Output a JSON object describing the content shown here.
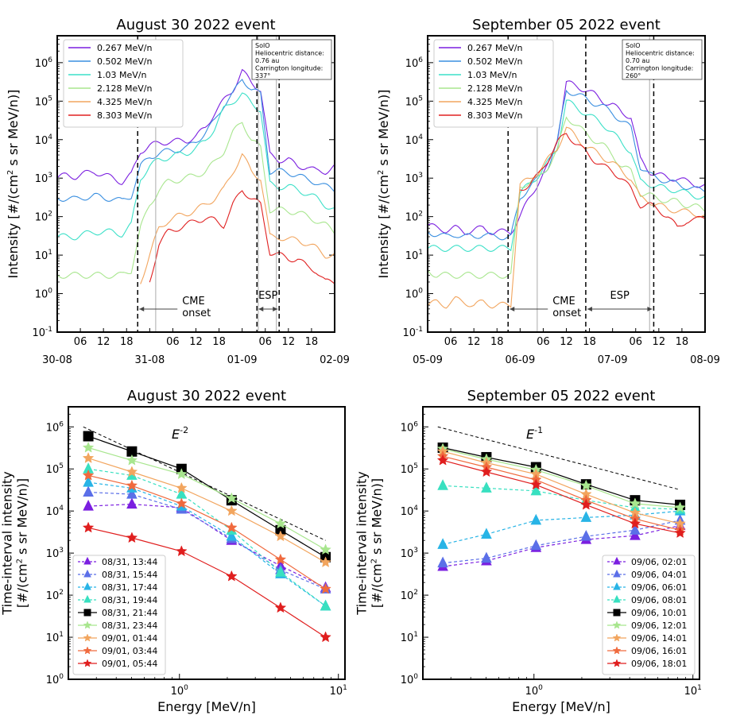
{
  "chart_data": [
    {
      "type": "line",
      "title": "August 30 2022 event",
      "ylabel": "Intensity [#/(cm² s sr MeV/n)]",
      "yscale": "log",
      "ylim": [
        0.1,
        5000000
      ],
      "date_labels": [
        "30-08",
        "31-08",
        "01-09",
        "02-09"
      ],
      "hour_labels": [
        "06",
        "12",
        "18",
        "06",
        "12",
        "18",
        "06",
        "12",
        "18"
      ],
      "legend_loc": "upper left",
      "info_box": [
        "SolO",
        "Heliocentric distance:",
        "0.76 au",
        "Carrington longitude:",
        "337°"
      ],
      "annotations": [
        "CME",
        "onset",
        "ESP"
      ],
      "series": [
        {
          "name": "0.267 MeV/n",
          "color": "#7b1fe0",
          "values": [
            1000,
            1200,
            1100,
            1300,
            1500,
            1200,
            1000,
            800,
            1200,
            5000,
            7000,
            8000,
            9000,
            9000,
            9500,
            12000,
            20000,
            50000,
            100000,
            200000,
            600000,
            300000,
            200000,
            4000,
            3000,
            3000,
            2000,
            2000,
            1500,
            1500,
            2000
          ]
        },
        {
          "name": "0.502 MeV/n",
          "color": "#3a8fe0",
          "values": [
            300,
            300,
            280,
            320,
            350,
            300,
            300,
            250,
            350,
            2000,
            3500,
            4500,
            5000,
            5500,
            6000,
            9000,
            15000,
            30000,
            80000,
            150000,
            400000,
            200000,
            150000,
            1500,
            1500,
            1400,
            1200,
            900,
            800,
            600,
            500
          ]
        },
        {
          "name": "1.03 MeV/n",
          "color": "#3ce0c8",
          "values": [
            30,
            30,
            30,
            35,
            40,
            40,
            40,
            35,
            60,
            1000,
            2000,
            3000,
            3500,
            4000,
            4500,
            6000,
            9000,
            20000,
            60000,
            100000,
            150000,
            90000,
            60000,
            700,
            600,
            600,
            500,
            400,
            300,
            200,
            150
          ]
        },
        {
          "name": "2.128 MeV/n",
          "color": "#a8e68e",
          "values": [
            3,
            3,
            3,
            3,
            3,
            3,
            3,
            3,
            4,
            50,
            200,
            500,
            800,
            900,
            1000,
            1200,
            1500,
            2500,
            5000,
            15000,
            30000,
            10000,
            6000,
            150,
            150,
            140,
            130,
            100,
            80,
            60,
            40
          ]
        },
        {
          "name": "4.325 MeV/n",
          "color": "#f2a55e",
          "values": [
            null,
            null,
            null,
            null,
            null,
            null,
            null,
            null,
            null,
            2,
            10,
            50,
            80,
            100,
            120,
            150,
            200,
            300,
            500,
            1500,
            4000,
            1500,
            1000,
            30,
            30,
            25,
            25,
            20,
            15,
            10,
            10
          ]
        },
        {
          "name": "8.303 MeV/n",
          "color": "#e02020",
          "values": [
            null,
            null,
            null,
            null,
            null,
            null,
            null,
            null,
            null,
            null,
            2,
            20,
            40,
            50,
            60,
            80,
            90,
            80,
            60,
            200,
            500,
            300,
            200,
            12,
            10,
            8,
            8,
            5,
            4,
            2,
            2
          ]
        }
      ],
      "vlines_dashed_frac": [
        0.29,
        0.72,
        0.8
      ],
      "vlines_gray_frac": [
        0.355,
        0.725,
        0.79
      ]
    },
    {
      "type": "line",
      "title": "September 05 2022 event",
      "ylabel": "Intensity [#/(cm² s sr MeV/n)]",
      "yscale": "log",
      "ylim": [
        0.1,
        5000000
      ],
      "date_labels": [
        "05-09",
        "06-09",
        "07-09",
        "08-09"
      ],
      "hour_labels": [
        "06",
        "12",
        "18",
        "06",
        "12",
        "18",
        "06",
        "12",
        "18"
      ],
      "legend_loc": "upper left",
      "info_box": [
        "SolO",
        "Heliocentric distance:",
        "0.70 au",
        "Carrington longitude:",
        "260°"
      ],
      "annotations": [
        "CME",
        "onset",
        "ESP"
      ],
      "series": [
        {
          "name": "0.267 MeV/n",
          "color": "#7b1fe0",
          "values": [
            60,
            50,
            45,
            50,
            40,
            45,
            50,
            40,
            40,
            40,
            100,
            300,
            800,
            2000,
            10000,
            300000,
            250000,
            200000,
            150000,
            100000,
            80000,
            50000,
            40000,
            3000,
            1500,
            1200,
            1000,
            1000,
            800,
            700,
            600
          ]
        },
        {
          "name": "0.502 MeV/n",
          "color": "#3a8fe0",
          "values": [
            40,
            35,
            30,
            35,
            30,
            30,
            35,
            30,
            30,
            30,
            300,
            600,
            1000,
            2000,
            8000,
            200000,
            150000,
            120000,
            90000,
            70000,
            50000,
            30000,
            20000,
            2000,
            1200,
            1000,
            800,
            700,
            600,
            500,
            500
          ]
        },
        {
          "name": "1.03 MeV/n",
          "color": "#3ce0c8",
          "values": [
            15,
            15,
            15,
            15,
            15,
            15,
            15,
            15,
            15,
            15,
            400,
            700,
            1200,
            2500,
            6000,
            100000,
            70000,
            50000,
            35000,
            25000,
            15000,
            8000,
            5000,
            800,
            700,
            600,
            500,
            500,
            400,
            350,
            300
          ]
        },
        {
          "name": "2.128 MeV/n",
          "color": "#a8e68e",
          "values": [
            4,
            3,
            3,
            3,
            3,
            3,
            3,
            3,
            3,
            3,
            600,
            800,
            1000,
            2000,
            5000,
            40000,
            25000,
            15000,
            10000,
            7000,
            4000,
            2000,
            1500,
            400,
            350,
            300,
            250,
            250,
            200,
            180,
            150
          ]
        },
        {
          "name": "4.325 MeV/n",
          "color": "#f2a55e",
          "values": [
            0.5,
            0.6,
            0.5,
            0.7,
            0.6,
            0.5,
            0.6,
            0.5,
            0.5,
            0.5,
            700,
            900,
            1500,
            3000,
            6000,
            20000,
            12000,
            7000,
            5000,
            3500,
            2500,
            1500,
            1000,
            300,
            250,
            200,
            150,
            150,
            130,
            120,
            100
          ]
        },
        {
          "name": "8.303 MeV/n",
          "color": "#e02020",
          "values": [
            null,
            null,
            null,
            null,
            null,
            null,
            null,
            null,
            null,
            null,
            500,
            700,
            1200,
            3000,
            8000,
            15000,
            8000,
            5000,
            3000,
            2000,
            1500,
            1000,
            500,
            200,
            200,
            150,
            100,
            50,
            80,
            80,
            100
          ]
        }
      ],
      "vlines_dashed_frac": [
        0.29,
        0.57,
        0.815
      ],
      "vlines_gray_frac": [
        0.395,
        0.8
      ]
    },
    {
      "type": "line",
      "title": "August 30 2022 event",
      "xlabel": "Energy [MeV/n]",
      "ylabel": "Time-interval intensity\n[#/(cm² s sr MeV/n)]",
      "xscale": "log",
      "yscale": "log",
      "xlim": [
        0.2,
        11
      ],
      "ylim": [
        1,
        3000000
      ],
      "x": [
        0.267,
        0.502,
        1.03,
        2.128,
        4.325,
        8.303
      ],
      "power_law_label": "E^{-2}",
      "power_law_line": {
        "x": [
          0.267,
          8.303
        ],
        "y": [
          1000000,
          2000
        ]
      },
      "legend_loc": "lower left",
      "series": [
        {
          "name": "08/31, 13:44",
          "color": "#7b1fe0",
          "marker": "triangle",
          "dash": true,
          "values": [
            13000,
            14500,
            12000,
            2000,
            500,
            150
          ]
        },
        {
          "name": "08/31, 15:44",
          "color": "#5b6fe8",
          "marker": "triangle",
          "dash": true,
          "values": [
            28000,
            25000,
            11000,
            2200,
            400,
            140
          ]
        },
        {
          "name": "08/31, 17:44",
          "color": "#28b4e6",
          "marker": "triangle",
          "dash": true,
          "values": [
            48000,
            35000,
            13000,
            2500,
            320,
            55
          ]
        },
        {
          "name": "08/31, 19:44",
          "color": "#38e0c0",
          "marker": "triangle",
          "dash": true,
          "values": [
            100000,
            70000,
            25000,
            3500,
            350,
            55
          ]
        },
        {
          "name": "08/31, 21:44",
          "color": "#000000",
          "marker": "square",
          "dash": false,
          "values": [
            600000,
            260000,
            100000,
            18000,
            3500,
            800
          ]
        },
        {
          "name": "08/31, 23:44",
          "color": "#a8e68e",
          "marker": "star",
          "dash": false,
          "values": [
            320000,
            160000,
            75000,
            20000,
            5000,
            1200
          ]
        },
        {
          "name": "09/01, 01:44",
          "color": "#f2a55e",
          "marker": "star",
          "dash": false,
          "values": [
            180000,
            85000,
            35000,
            10000,
            2500,
            600
          ]
        },
        {
          "name": "09/01, 03:44",
          "color": "#f06a3e",
          "marker": "star",
          "dash": false,
          "values": [
            70000,
            40000,
            15000,
            4000,
            700,
            140
          ]
        },
        {
          "name": "09/01, 05:44",
          "color": "#e01e1e",
          "marker": "star",
          "dash": false,
          "values": [
            4000,
            2300,
            1100,
            280,
            50,
            10
          ]
        }
      ]
    },
    {
      "type": "line",
      "title": "September 05 2022 event",
      "xlabel": "Energy [MeV/n]",
      "ylabel": "Time-interval intensity\n[#/(cm² s sr MeV/n)]",
      "xscale": "log",
      "yscale": "log",
      "xlim": [
        0.2,
        11
      ],
      "ylim": [
        1,
        3000000
      ],
      "x": [
        0.267,
        0.502,
        1.03,
        2.128,
        4.325,
        8.303
      ],
      "power_law_label": "E^{-1}",
      "power_law_line": {
        "x": [
          0.267,
          8.303
        ],
        "y": [
          1000000,
          32000
        ]
      },
      "legend_loc": "lower right",
      "series": [
        {
          "name": "09/06, 02:01",
          "color": "#7b1fe0",
          "marker": "triangle",
          "dash": true,
          "values": [
            480,
            650,
            1350,
            2100,
            2600,
            4500
          ]
        },
        {
          "name": "09/06, 04:01",
          "color": "#5b6fe8",
          "marker": "triangle",
          "dash": true,
          "values": [
            580,
            750,
            1500,
            2500,
            3500,
            6000
          ]
        },
        {
          "name": "09/06, 06:01",
          "color": "#28b4e6",
          "marker": "triangle",
          "dash": true,
          "values": [
            1600,
            2800,
            6000,
            7000,
            8000,
            10000
          ]
        },
        {
          "name": "09/06, 08:01",
          "color": "#38e0c0",
          "marker": "triangle",
          "dash": true,
          "values": [
            40000,
            35000,
            30000,
            18000,
            12000,
            11000
          ]
        },
        {
          "name": "09/06, 10:01",
          "color": "#000000",
          "marker": "square",
          "dash": false,
          "values": [
            320000,
            190000,
            110000,
            43000,
            18000,
            14000
          ]
        },
        {
          "name": "09/06, 12:01",
          "color": "#a8e68e",
          "marker": "star",
          "dash": false,
          "values": [
            300000,
            170000,
            95000,
            40000,
            15000,
            12000
          ]
        },
        {
          "name": "09/06, 14:01",
          "color": "#f2a55e",
          "marker": "star",
          "dash": false,
          "values": [
            260000,
            140000,
            75000,
            25000,
            9000,
            5000
          ]
        },
        {
          "name": "09/06, 16:01",
          "color": "#f06a3e",
          "marker": "star",
          "dash": false,
          "values": [
            200000,
            110000,
            55000,
            18000,
            6500,
            3500
          ]
        },
        {
          "name": "09/06, 18:01",
          "color": "#e01e1e",
          "marker": "star",
          "dash": false,
          "values": [
            160000,
            85000,
            42000,
            14000,
            5000,
            3000
          ]
        }
      ]
    }
  ]
}
